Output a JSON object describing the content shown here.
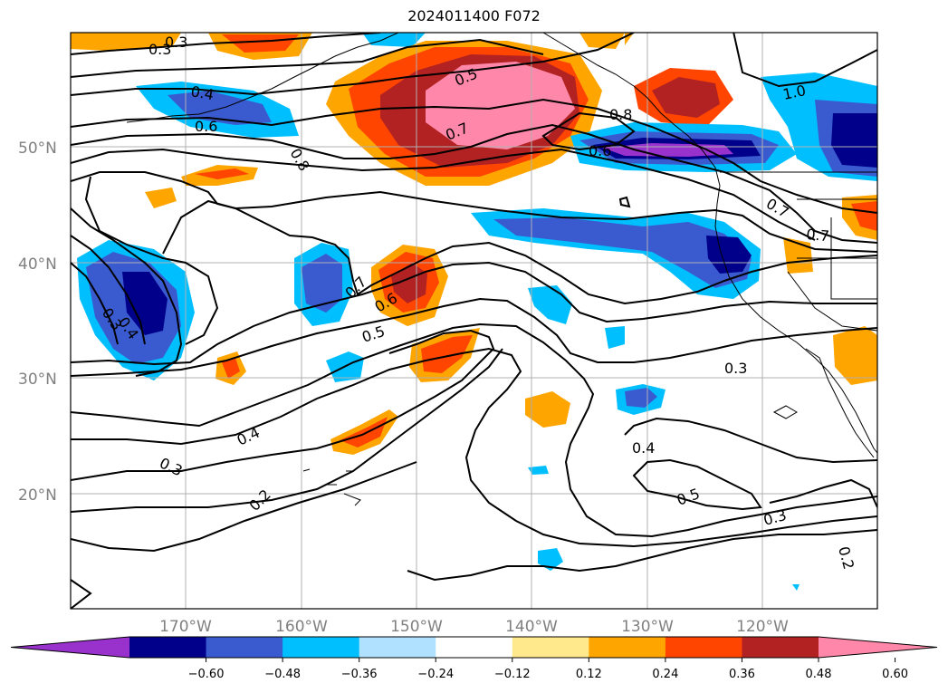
{
  "title": "2024011400 F072",
  "map": {
    "lat_ticks": [
      "50°N",
      "40°N",
      "30°N",
      "20°N"
    ],
    "lon_ticks": [
      "170°W",
      "160°W",
      "150°W",
      "140°W",
      "130°W",
      "120°W"
    ],
    "contour_labels": [
      "0.3",
      "0.4",
      "0.6",
      "0.8",
      "0.5",
      "0.7",
      "0.8",
      "0.6",
      "1.0",
      "0.7",
      "0.7",
      "0.7",
      "0.6",
      "0.5",
      "0.4",
      "0.3",
      "0.3",
      "0.4",
      "0.3",
      "0.2",
      "0.4",
      "0.5",
      "0.3",
      "0.2",
      "0.3"
    ],
    "colors": {
      "land_outline": "#000000",
      "contour": "#000000",
      "grid": "#b0b0b0"
    }
  },
  "colorbar": {
    "tick_labels": [
      "−0.60",
      "−0.48",
      "−0.36",
      "−0.24",
      "−0.12",
      "0.12",
      "0.24",
      "0.36",
      "0.48",
      "0.60"
    ],
    "colors": [
      "#9932CC",
      "#00008B",
      "#3A5BCF",
      "#00BFFF",
      "#B0E2FF",
      "#FFFFFF",
      "#FFE98C",
      "#FFA500",
      "#FF4500",
      "#B22222",
      "#FF88AA"
    ]
  }
}
